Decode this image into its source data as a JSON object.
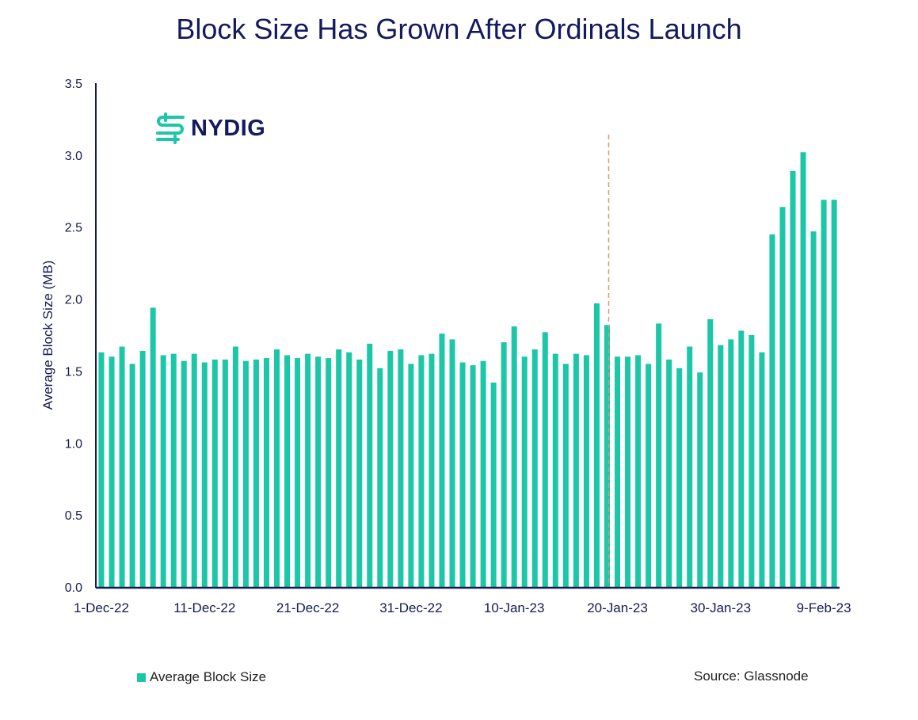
{
  "chart_data": {
    "type": "bar",
    "title": "Block Size Has Grown After Ordinals Launch",
    "xlabel": "",
    "ylabel": "Average Block Size (MB)",
    "ylim": [
      0,
      3.5
    ],
    "yticks": [
      "0.0",
      "0.5",
      "1.0",
      "1.5",
      "2.0",
      "2.5",
      "3.0",
      "3.5"
    ],
    "xtick_labels": [
      "1-Dec-22",
      "11-Dec-22",
      "21-Dec-22",
      "31-Dec-22",
      "10-Jan-23",
      "20-Jan-23",
      "30-Jan-23",
      "9-Feb-23"
    ],
    "xtick_every": 10,
    "grid": false,
    "legend_position": "bottom-left",
    "bar_color": "#1cc7a8",
    "marker_line": {
      "category_index": 49,
      "color": "#d99a6c",
      "style": "dashed"
    },
    "series": [
      {
        "name": "Average Block Size",
        "values": [
          1.63,
          1.6,
          1.67,
          1.55,
          1.64,
          1.94,
          1.61,
          1.62,
          1.57,
          1.62,
          1.56,
          1.58,
          1.58,
          1.67,
          1.57,
          1.58,
          1.59,
          1.65,
          1.61,
          1.59,
          1.62,
          1.6,
          1.59,
          1.65,
          1.63,
          1.58,
          1.69,
          1.52,
          1.64,
          1.65,
          1.55,
          1.61,
          1.62,
          1.76,
          1.72,
          1.56,
          1.54,
          1.57,
          1.42,
          1.7,
          1.81,
          1.6,
          1.65,
          1.77,
          1.62,
          1.55,
          1.62,
          1.61,
          1.97,
          1.82,
          1.6,
          1.6,
          1.61,
          1.55,
          1.83,
          1.58,
          1.52,
          1.67,
          1.49,
          1.86,
          1.68,
          1.72,
          1.78,
          1.75,
          1.63,
          2.45,
          2.64,
          2.89,
          3.02,
          2.47,
          2.69,
          2.69
        ]
      }
    ]
  },
  "logo": {
    "text": "NYDIG",
    "color": "#1cc7a8"
  },
  "legend": {
    "label": "Average Block Size"
  },
  "source": "Source: Glassnode",
  "axis_color": "#141a4f"
}
